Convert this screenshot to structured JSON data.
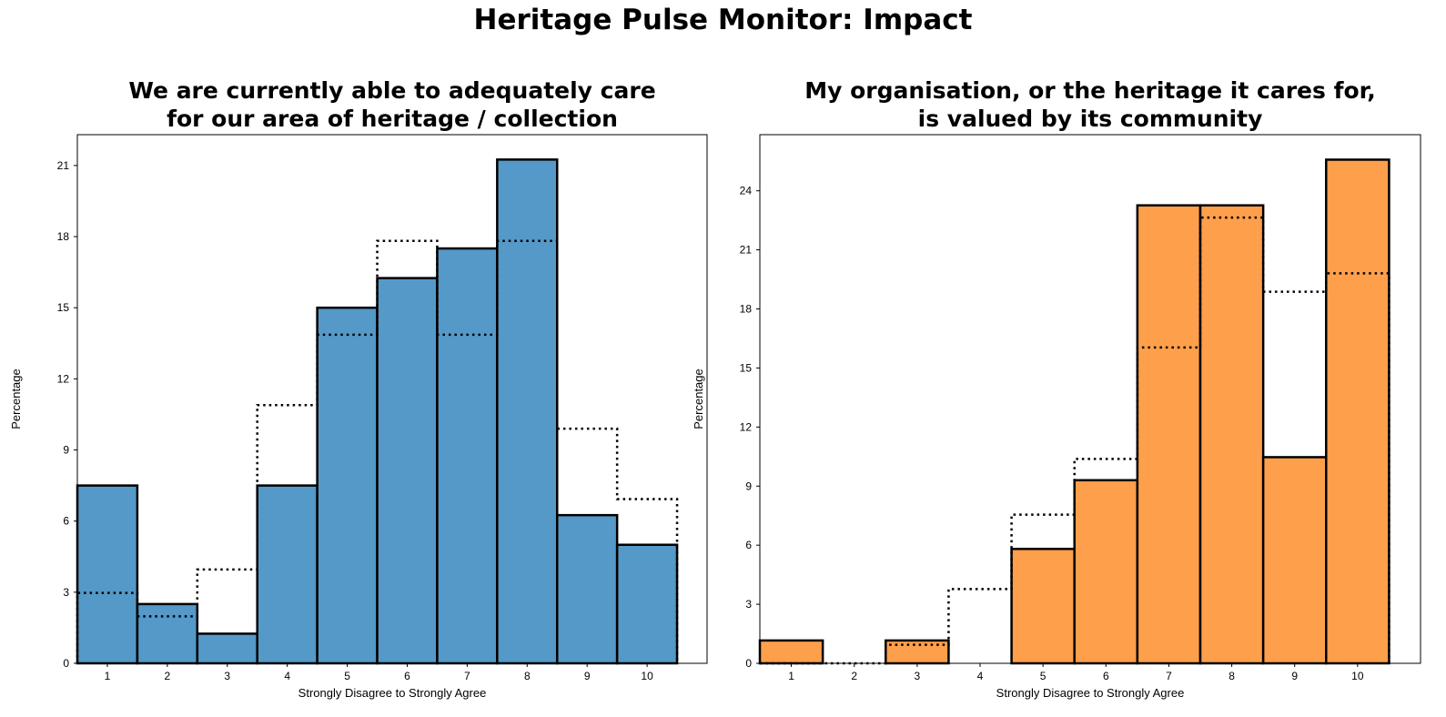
{
  "page": {
    "title": "Heritage Pulse Monitor: Impact"
  },
  "chart_data": [
    {
      "type": "bar",
      "title_line1": "We are currently able to adequately care",
      "title_line2": "for our area of heritage / collection",
      "xlabel": "Strongly Disagree to Strongly Agree",
      "ylabel": "Percentage",
      "categories": [
        "1",
        "2",
        "3",
        "4",
        "5",
        "6",
        "7",
        "8",
        "9",
        "10"
      ],
      "values": [
        7.5,
        2.5,
        1.25,
        7.5,
        15.0,
        16.25,
        17.5,
        21.25,
        6.25,
        5.0
      ],
      "comparison_values": [
        2.97,
        1.98,
        3.96,
        10.89,
        13.86,
        17.82,
        13.86,
        17.82,
        9.9,
        6.93
      ],
      "yticks": [
        0,
        3,
        6,
        9,
        12,
        15,
        18,
        21
      ],
      "ylim": [
        0,
        22.3
      ],
      "xlim": [
        0.5,
        11.0
      ],
      "color": "#5499c7",
      "comparison_style": "dotted",
      "grid": false
    },
    {
      "type": "bar",
      "title_line1": "My organisation, or the heritage it cares for,",
      "title_line2": "is valued by its community",
      "xlabel": "Strongly Disagree to Strongly Agree",
      "ylabel": "Percentage",
      "categories": [
        "1",
        "2",
        "3",
        "4",
        "5",
        "6",
        "7",
        "8",
        "9",
        "10"
      ],
      "values": [
        1.16,
        0,
        1.16,
        0,
        5.81,
        9.3,
        23.26,
        23.26,
        10.47,
        25.58
      ],
      "comparison_values": [
        0,
        0,
        0.94,
        3.77,
        7.55,
        10.38,
        16.04,
        22.64,
        18.87,
        19.81
      ],
      "yticks": [
        0,
        3,
        6,
        9,
        12,
        15,
        18,
        21,
        24
      ],
      "ylim": [
        0,
        26.85
      ],
      "xlim": [
        0.5,
        11.0
      ],
      "color": "#fd9f4b",
      "comparison_style": "dotted",
      "grid": false
    }
  ]
}
